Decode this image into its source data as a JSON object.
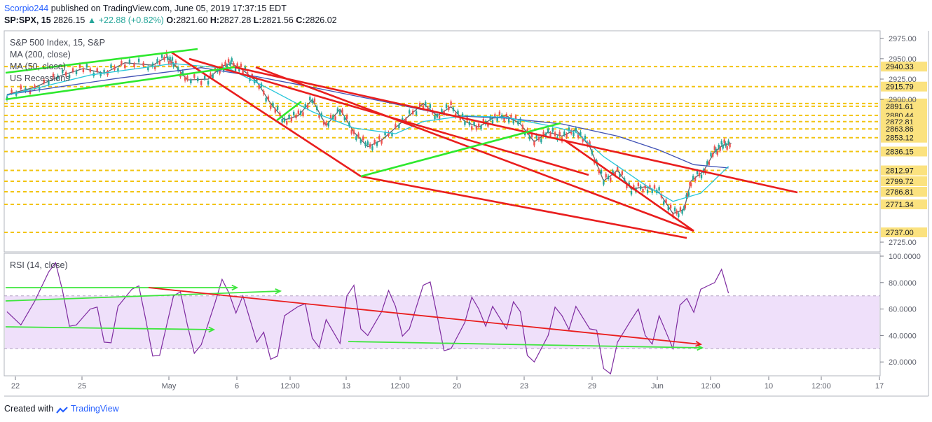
{
  "header": {
    "author": "Scorpio244",
    "published": " published on TradingView.com, June 05, 2019 17:37:15 EDT",
    "symbol": "SP:SPX, 15",
    "price": "2826.15",
    "change": "+22.88 (+0.82%)",
    "ohlc_o_label": "O:",
    "ohlc_o": "2821.60",
    "ohlc_h_label": "H:",
    "ohlc_h": "2827.28",
    "ohlc_l_label": "L:",
    "ohlc_l": "2821.56",
    "ohlc_c_label": "C:",
    "ohlc_c": "2826.02"
  },
  "legend": {
    "title": "S&P 500 Index, 15, S&P",
    "ma200": "MA (200, close)",
    "ma50": "MA (50, close)",
    "recessions": "US Recessions"
  },
  "rsi_label": "RSI (14, close)",
  "footer": {
    "prefix": "Created with",
    "brand": "TradingView"
  },
  "colors": {
    "candle_up": "#26a69a",
    "candle_down": "#ef5350",
    "price_line": "#5d606b",
    "ma_line": "#3f51b5",
    "ma_fast": "#26c6da",
    "trend_red": "#e91e1e",
    "trend_green": "#2ee82e",
    "level_line": "#f2c40f",
    "level_label_bg": "#fbe27f",
    "rsi_line": "#7e2ba0",
    "rsi_band": "#efe0fa",
    "arrow_green": "#3ee63e"
  },
  "chart_data": [
    {
      "type": "line",
      "title": "S&P 500 Index, 15, S&P",
      "series_names": [
        "MA (200, close)",
        "MA (50, close)"
      ],
      "x_tick_labels": [
        "22",
        "25",
        "May",
        "6",
        "12:00",
        "13",
        "12:00",
        "20",
        "23",
        "29",
        "Jun",
        "12:00",
        "10",
        "12:00",
        "17"
      ],
      "y_tick_labels": [
        "2975.00",
        "2950.00",
        "2925.00",
        "2900.00",
        "2725.00"
      ],
      "ylim": [
        2725,
        2975
      ],
      "price_levels": [
        2940.33,
        2915.79,
        2895.06,
        2891.61,
        2880.44,
        2872.81,
        2863.86,
        2853.12,
        2836.15,
        2812.97,
        2799.72,
        2786.81,
        2771.34,
        2737.0
      ],
      "price_level_labels": [
        "2940.33",
        "2915.79",
        "2895.06",
        "2891.61",
        "2880.44",
        "2872.81",
        "2863.86",
        "2853.12",
        "2836.15",
        "2812.97",
        "2799.72",
        "2786.81",
        "2771.34",
        "2737.00"
      ],
      "price_path": [
        {
          "x": 0,
          "y": 2906
        },
        {
          "x": 2,
          "y": 2915
        },
        {
          "x": 4,
          "y": 2930
        },
        {
          "x": 5.5,
          "y": 2938
        },
        {
          "x": 7,
          "y": 2932
        },
        {
          "x": 8.5,
          "y": 2945
        },
        {
          "x": 10.5,
          "y": 2942
        },
        {
          "x": 11.5,
          "y": 2952
        },
        {
          "x": 12,
          "y": 2944
        },
        {
          "x": 13,
          "y": 2924
        },
        {
          "x": 14.5,
          "y": 2925
        },
        {
          "x": 15.5,
          "y": 2941
        },
        {
          "x": 16.2,
          "y": 2944
        },
        {
          "x": 17,
          "y": 2936
        },
        {
          "x": 18,
          "y": 2922
        },
        {
          "x": 19,
          "y": 2895
        },
        {
          "x": 20,
          "y": 2875
        },
        {
          "x": 21,
          "y": 2880
        },
        {
          "x": 22,
          "y": 2900
        },
        {
          "x": 23,
          "y": 2868
        },
        {
          "x": 24,
          "y": 2888
        },
        {
          "x": 25,
          "y": 2860
        },
        {
          "x": 26,
          "y": 2842
        },
        {
          "x": 27,
          "y": 2850
        },
        {
          "x": 28.5,
          "y": 2873
        },
        {
          "x": 30,
          "y": 2895
        },
        {
          "x": 31,
          "y": 2880
        },
        {
          "x": 32,
          "y": 2891
        },
        {
          "x": 33,
          "y": 2873
        },
        {
          "x": 34,
          "y": 2866
        },
        {
          "x": 35,
          "y": 2877
        },
        {
          "x": 36,
          "y": 2880
        },
        {
          "x": 37,
          "y": 2870
        },
        {
          "x": 38,
          "y": 2848
        },
        {
          "x": 39,
          "y": 2860
        },
        {
          "x": 40,
          "y": 2855
        },
        {
          "x": 41,
          "y": 2863
        },
        {
          "x": 42,
          "y": 2842
        },
        {
          "x": 43,
          "y": 2800
        },
        {
          "x": 44,
          "y": 2813
        },
        {
          "x": 45,
          "y": 2790
        },
        {
          "x": 46,
          "y": 2793
        },
        {
          "x": 47,
          "y": 2786
        },
        {
          "x": 48,
          "y": 2760
        },
        {
          "x": 48.8,
          "y": 2765
        },
        {
          "x": 49.3,
          "y": 2800
        },
        {
          "x": 50.2,
          "y": 2812
        },
        {
          "x": 51,
          "y": 2836
        },
        {
          "x": 51.6,
          "y": 2844
        },
        {
          "x": 52.2,
          "y": 2846
        }
      ],
      "ma200_path": [
        {
          "x": 0,
          "y": 2906
        },
        {
          "x": 8,
          "y": 2926
        },
        {
          "x": 14,
          "y": 2939
        },
        {
          "x": 18,
          "y": 2928
        },
        {
          "x": 22,
          "y": 2915
        },
        {
          "x": 27,
          "y": 2898
        },
        {
          "x": 32,
          "y": 2880
        },
        {
          "x": 36,
          "y": 2877
        },
        {
          "x": 40,
          "y": 2870
        },
        {
          "x": 44,
          "y": 2855
        },
        {
          "x": 47,
          "y": 2838
        },
        {
          "x": 49.5,
          "y": 2820
        },
        {
          "x": 52,
          "y": 2816
        }
      ],
      "ma50_path": [
        {
          "x": 0,
          "y": 2905
        },
        {
          "x": 6,
          "y": 2930
        },
        {
          "x": 12,
          "y": 2944
        },
        {
          "x": 16,
          "y": 2938
        },
        {
          "x": 19,
          "y": 2912
        },
        {
          "x": 22,
          "y": 2885
        },
        {
          "x": 25,
          "y": 2865
        },
        {
          "x": 28,
          "y": 2858
        },
        {
          "x": 30,
          "y": 2873
        },
        {
          "x": 33,
          "y": 2880
        },
        {
          "x": 36,
          "y": 2878
        },
        {
          "x": 39,
          "y": 2868
        },
        {
          "x": 41,
          "y": 2860
        },
        {
          "x": 43,
          "y": 2830
        },
        {
          "x": 46,
          "y": 2795
        },
        {
          "x": 48,
          "y": 2775
        },
        {
          "x": 50,
          "y": 2785
        },
        {
          "x": 52,
          "y": 2818
        }
      ]
    },
    {
      "type": "line",
      "title": "RSI (14, close)",
      "y_tick_labels": [
        "100.0000",
        "80.0000",
        "60.0000",
        "40.0000",
        "20.0000"
      ],
      "ylim": [
        7,
        103
      ],
      "band": [
        30,
        70
      ],
      "rsi_path": [
        {
          "x": 0,
          "y": 58
        },
        {
          "x": 2,
          "y": 66
        },
        {
          "x": 3,
          "y": 88
        },
        {
          "x": 4,
          "y": 74
        },
        {
          "x": 5,
          "y": 48
        },
        {
          "x": 6,
          "y": 60
        },
        {
          "x": 7,
          "y": 35
        },
        {
          "x": 8,
          "y": 62
        },
        {
          "x": 9,
          "y": 75
        },
        {
          "x": 10,
          "y": 52
        },
        {
          "x": 11,
          "y": 25
        },
        {
          "x": 12,
          "y": 70
        },
        {
          "x": 13,
          "y": 48
        },
        {
          "x": 14,
          "y": 33
        },
        {
          "x": 15,
          "y": 65
        },
        {
          "x": 16,
          "y": 72
        },
        {
          "x": 17,
          "y": 70
        },
        {
          "x": 18,
          "y": 35
        },
        {
          "x": 19,
          "y": 22
        },
        {
          "x": 20,
          "y": 55
        },
        {
          "x": 21,
          "y": 62
        },
        {
          "x": 22,
          "y": 38
        },
        {
          "x": 23,
          "y": 52
        },
        {
          "x": 24,
          "y": 34
        },
        {
          "x": 25,
          "y": 78
        },
        {
          "x": 26,
          "y": 40
        },
        {
          "x": 27,
          "y": 58
        },
        {
          "x": 28,
          "y": 62
        },
        {
          "x": 29,
          "y": 45
        },
        {
          "x": 30,
          "y": 78
        },
        {
          "x": 31,
          "y": 55
        },
        {
          "x": 32,
          "y": 30
        },
        {
          "x": 33,
          "y": 50
        },
        {
          "x": 34,
          "y": 60
        },
        {
          "x": 35,
          "y": 62
        },
        {
          "x": 36,
          "y": 45
        },
        {
          "x": 37,
          "y": 58
        },
        {
          "x": 38,
          "y": 20
        },
        {
          "x": 39,
          "y": 40
        },
        {
          "x": 40,
          "y": 55
        },
        {
          "x": 41,
          "y": 62
        },
        {
          "x": 42,
          "y": 45
        },
        {
          "x": 43,
          "y": 15
        },
        {
          "x": 44,
          "y": 35
        },
        {
          "x": 45,
          "y": 52
        },
        {
          "x": 46,
          "y": 40
        },
        {
          "x": 47,
          "y": 55
        },
        {
          "x": 48,
          "y": 30
        },
        {
          "x": 49,
          "y": 68
        },
        {
          "x": 50,
          "y": 75
        },
        {
          "x": 51,
          "y": 80
        },
        {
          "x": 52,
          "y": 72
        }
      ]
    }
  ]
}
